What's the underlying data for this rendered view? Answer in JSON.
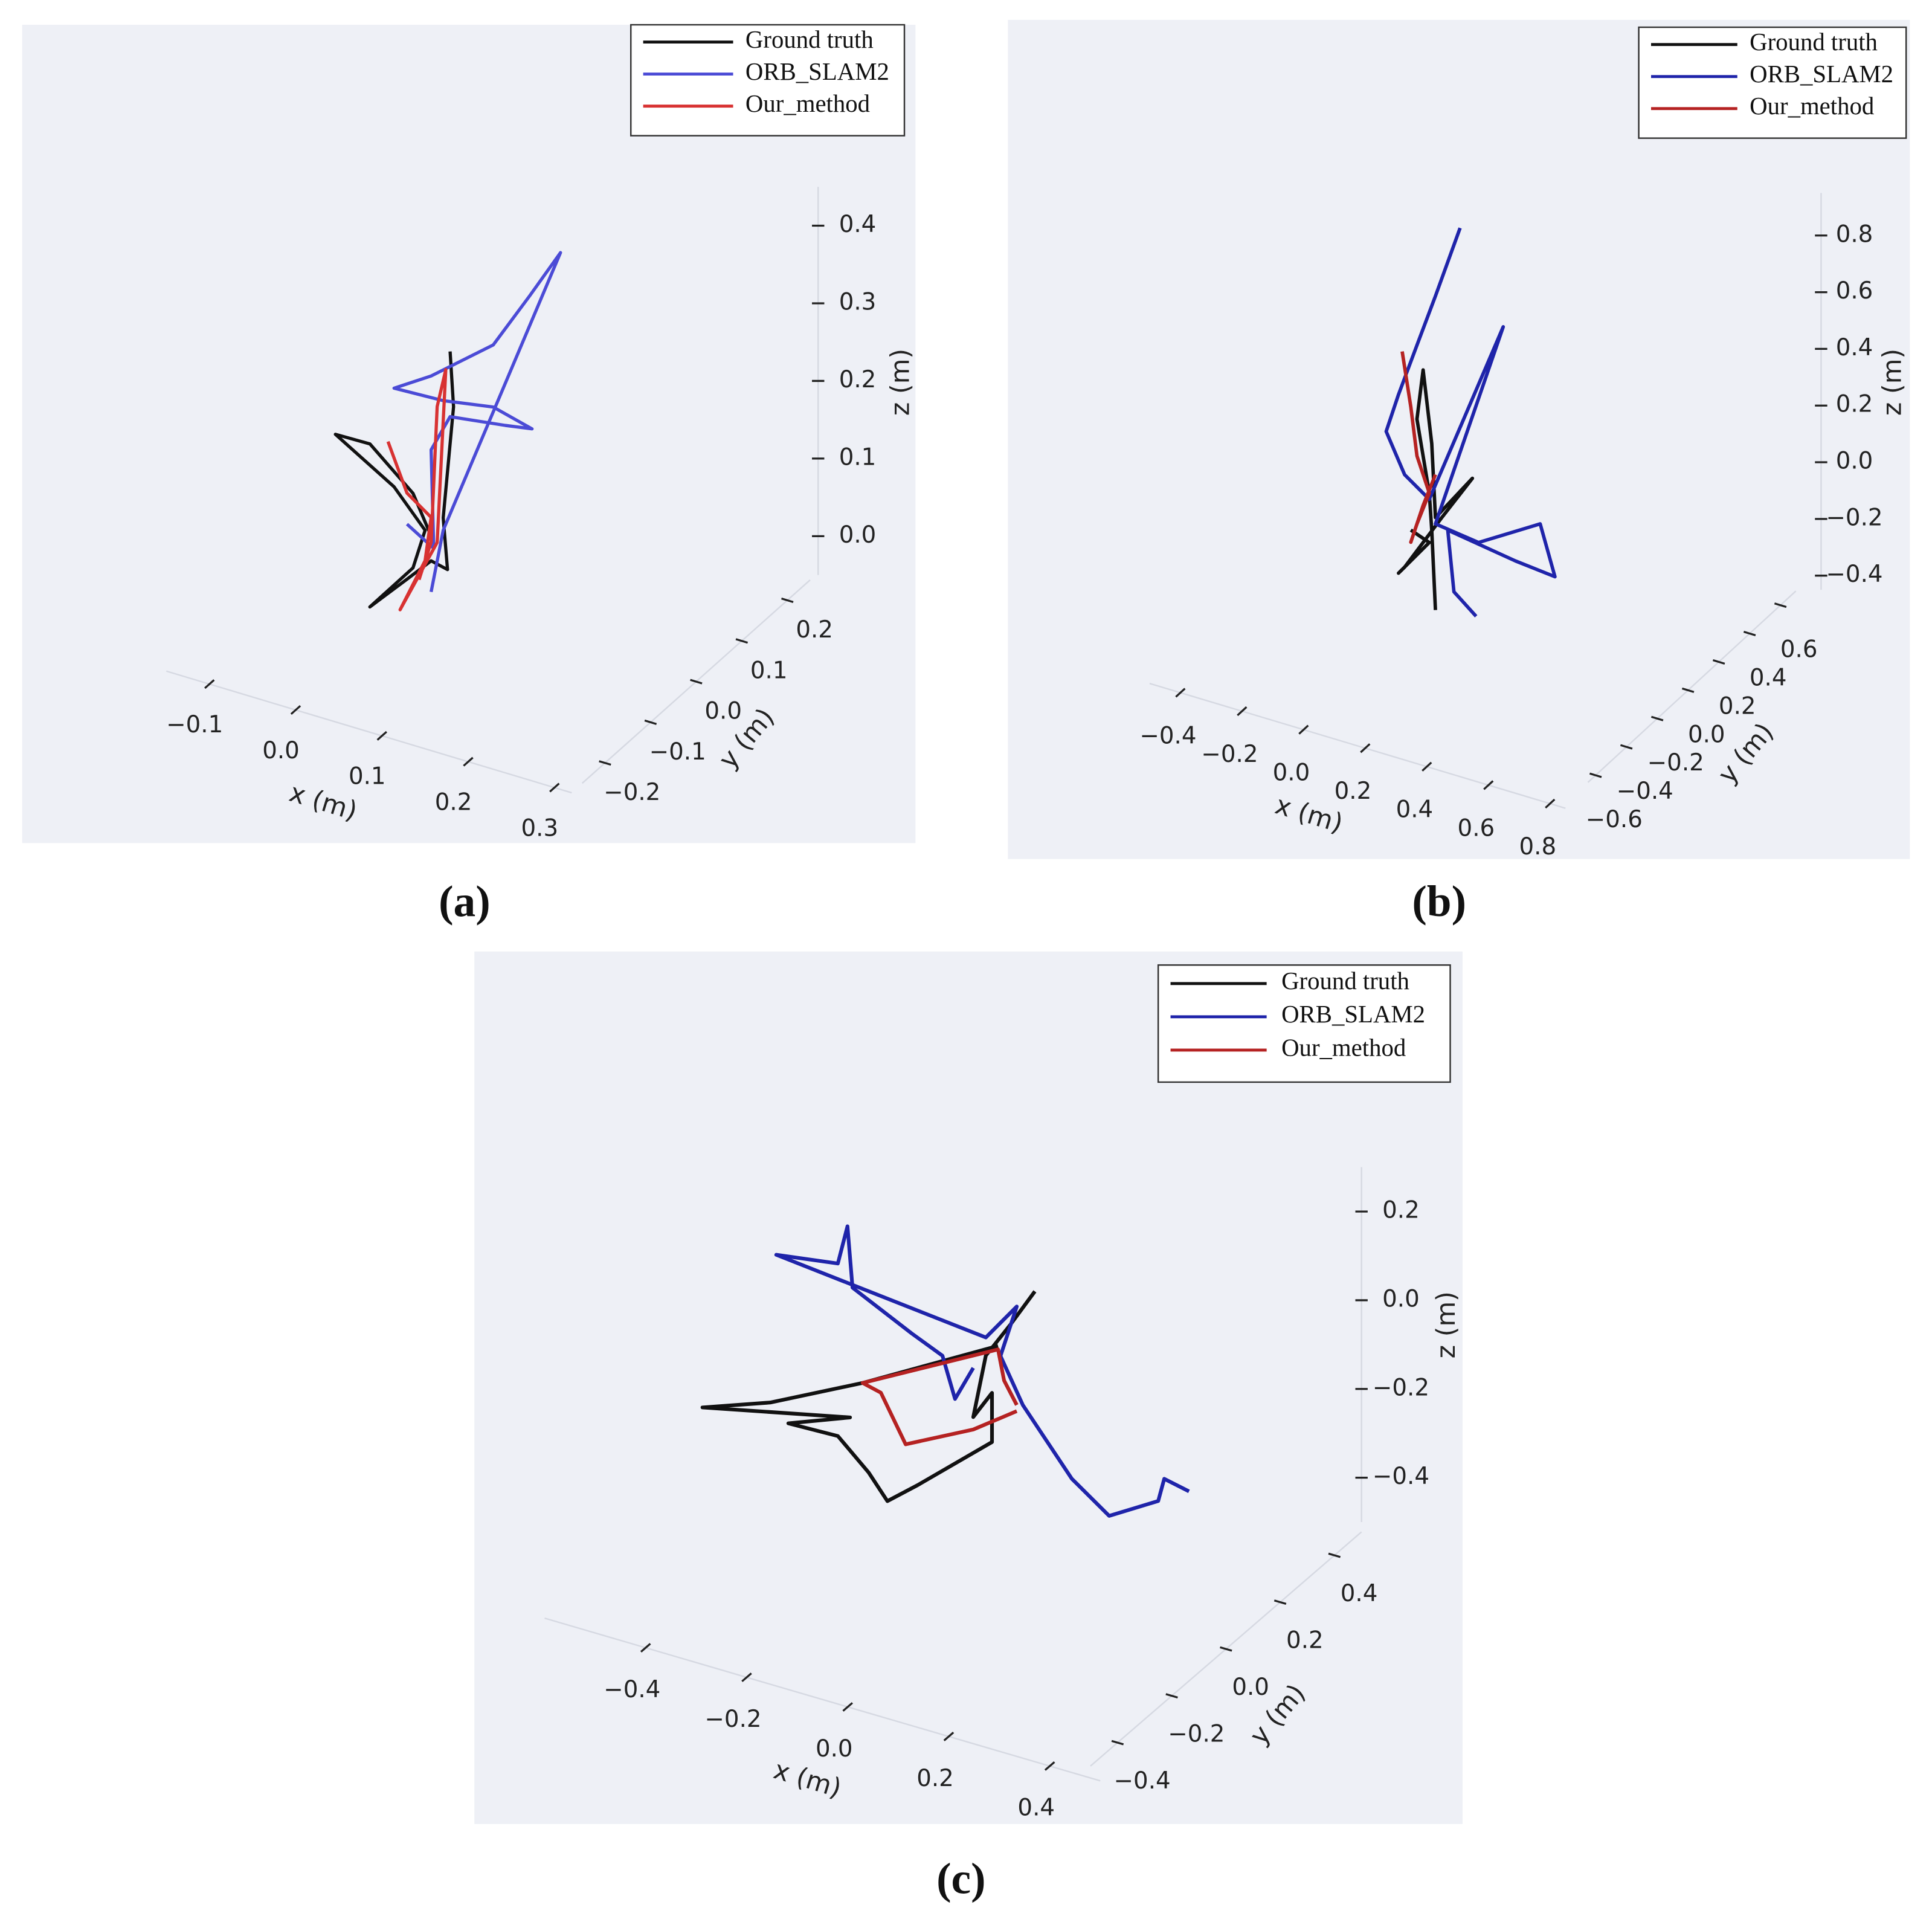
{
  "chart_data": [
    {
      "type": "line3d",
      "label": "(a)",
      "xlabel": "x (m)",
      "ylabel": "y (m)",
      "zlabel": "z (m)",
      "xlim": [
        -0.15,
        0.32
      ],
      "ylim": [
        -0.25,
        0.25
      ],
      "zlim": [
        -0.05,
        0.45
      ],
      "xticks": [
        {
          "value": -0.1,
          "label": "−0.1"
        },
        {
          "value": 0,
          "label": "0.0"
        },
        0.1,
        0.2,
        0.3
      ],
      "yticks": [
        {
          "value": -0.2,
          "label": "−0.2"
        },
        {
          "value": -0.1,
          "label": "−0.1"
        },
        {
          "value": 0,
          "label": "0.0"
        },
        0.1,
        0.2
      ],
      "zticks": [
        {
          "value": 0,
          "label": "0.0"
        },
        0.1,
        0.2,
        0.3,
        0.4
      ],
      "series": [
        {
          "name": "Ground truth",
          "color": "#111111",
          "x": [
            0.039,
            0.043,
            0.031,
            0.036,
            0.017,
            -0.011,
            -0.054,
            -0.004,
            0.01,
            -0.026,
            -0.094,
            -0.054,
            -0.004,
            0.02
          ],
          "z": [
            0.27,
            0.2,
            0.053,
            -0.012,
            -0.007,
            -0.04,
            -0.09,
            -0.023,
            0.03,
            0.074,
            0.119,
            0.12,
            0.073,
            0.018
          ]
        },
        {
          "name": "ORB_SLAM2",
          "color": "#4b4bd6",
          "x": [
            0.017,
            0.031,
            0.167,
            0.131,
            0.089,
            0.017,
            -0.026,
            0.031,
            0.089,
            0.134,
            0.103,
            0.039,
            0.017,
            0.02,
            -0.011
          ],
          "z": [
            -0.047,
            0.037,
            0.44,
            0.372,
            0.295,
            0.231,
            0.201,
            0.204,
            0.215,
            0.202,
            0.196,
            0.186,
            0.136,
            0.01,
            0.031
          ]
        },
        {
          "name": "Our_method",
          "color": "#d83232",
          "x": [
            -0.033,
            -0.011,
            0.017,
            0.01,
            -0.019,
            0.024,
            0.034,
            0.024,
            0.017,
            0.003
          ],
          "z": [
            0.13,
            0.071,
            0.049,
            -0.009,
            -0.082,
            0.019,
            0.245,
            0.194,
            0.017,
            -0.036
          ]
        }
      ]
    },
    {
      "type": "line3d",
      "label": "(b)",
      "xlabel": "x (m)",
      "ylabel": "y (m)",
      "zlabel": "z (m)",
      "xlim": [
        -0.5,
        0.85
      ],
      "ylim": [
        -0.65,
        0.7
      ],
      "zlim": [
        -0.45,
        0.95
      ],
      "xticks": [
        {
          "value": -0.4,
          "label": "−0.4"
        },
        {
          "value": -0.2,
          "label": "−0.2"
        },
        {
          "value": 0,
          "label": "0.0"
        },
        0.2,
        0.4,
        0.6,
        0.8
      ],
      "yticks": [
        {
          "value": -0.6,
          "label": "−0.6"
        },
        {
          "value": -0.4,
          "label": "−0.4"
        },
        {
          "value": -0.2,
          "label": "−0.2"
        },
        {
          "value": 0,
          "label": "0.0"
        },
        0.2,
        0.4,
        0.6
      ],
      "zticks": [
        {
          "value": -0.4,
          "label": "−0.4"
        },
        {
          "value": -0.2,
          "label": "−0.2"
        },
        {
          "value": 0,
          "label": "0.0"
        },
        0.2,
        0.4,
        0.6,
        0.8
      ],
      "series": [
        {
          "name": "Ground truth",
          "color": "#111111",
          "x": [
            0.064,
            0.052,
            0.044,
            0.004,
            0.024,
            0.052,
            0.064,
            0.184,
            0.084,
            -0.036,
            -0.056,
            0.044,
            -0.016
          ],
          "z": [
            -0.444,
            -0.166,
            -0.038,
            0.21,
            0.39,
            0.139,
            -0.118,
            0.06,
            -0.112,
            -0.325,
            -0.353,
            -0.212,
            -0.188
          ]
        },
        {
          "name": "ORB_SLAM2",
          "color": "#1f24aa",
          "x": [
            0.144,
            0.064,
            0.004,
            -0.056,
            -0.096,
            -0.036,
            0.044,
            0.284,
            0.064,
            0.204,
            0.404,
            0.452,
            0.324,
            0.104,
            0.124,
            0.196
          ],
          "z": [
            0.93,
            0.664,
            0.471,
            0.277,
            0.134,
            0.001,
            -0.06,
            0.627,
            -0.14,
            -0.16,
            -0.029,
            -0.2,
            -0.186,
            -0.149,
            -0.36,
            -0.423
          ]
        },
        {
          "name": "Our_method",
          "color": "#b52222",
          "x": [
            -0.044,
            -0.016,
            0.004,
            0.044,
            0.004,
            -0.016,
            0.024,
            0.064
          ],
          "z": [
            0.433,
            0.247,
            0.08,
            -0.038,
            -0.16,
            -0.231,
            -0.088,
            0.034
          ]
        }
      ]
    },
    {
      "type": "line3d",
      "label": "(c)",
      "xlabel": "x (m)",
      "ylabel": "y (m)",
      "zlabel": "z (m)",
      "xlim": [
        -0.6,
        0.5
      ],
      "ylim": [
        -0.5,
        0.5
      ],
      "zlim": [
        -0.5,
        0.3
      ],
      "xticks": [
        {
          "value": -0.4,
          "label": "−0.4"
        },
        {
          "value": -0.2,
          "label": "−0.2"
        },
        {
          "value": 0,
          "label": "0.0"
        },
        0.2,
        0.4
      ],
      "yticks": [
        {
          "value": -0.4,
          "label": "−0.4"
        },
        {
          "value": -0.2,
          "label": "−0.2"
        },
        {
          "value": 0,
          "label": "0.0"
        },
        0.2,
        0.4
      ],
      "zticks": [
        {
          "value": -0.4,
          "label": "−0.4"
        },
        {
          "value": -0.2,
          "label": "−0.2"
        },
        {
          "value": 0,
          "label": "0.0"
        },
        0.2
      ],
      "series": [
        {
          "name": "Ground truth",
          "color": "#111111",
          "x": [
            0.112,
            0.063,
            0.015,
            -0.01,
            0.027,
            0.027,
            -0.12,
            -0.18,
            -0.217,
            -0.278,
            -0.376,
            -0.254,
            -0.546,
            -0.412,
            -0.229,
            0.039
          ],
          "z": [
            0.16,
            0.068,
            -0.017,
            -0.164,
            -0.097,
            -0.208,
            -0.354,
            -0.41,
            -0.358,
            -0.296,
            -0.3,
            -0.246,
            -0.321,
            -0.265,
            -0.16,
            0.013
          ]
        },
        {
          "name": "ORB_SLAM2",
          "color": "#1f24aa",
          "x": [
            -0.01,
            -0.046,
            -0.071,
            -0.132,
            -0.249,
            -0.259,
            -0.278,
            -0.4,
            0.015,
            0.076,
            0.044,
            0.088,
            0.185,
            0.259,
            0.356,
            0.368,
            0.417
          ],
          "z": [
            -0.053,
            -0.135,
            -0.046,
            -0.016,
            0.048,
            0.183,
            0.093,
            0.072,
            0.024,
            0.114,
            -0.008,
            -0.104,
            -0.238,
            -0.297,
            -0.231,
            -0.177,
            -0.189
          ]
        },
        {
          "name": "Our_method",
          "color": "#b52222",
          "x": [
            0.076,
            0.051,
            0.039,
            -0.229,
            -0.193,
            -0.144,
            -0.01,
            0.076
          ],
          "z": [
            -0.108,
            -0.061,
            0.005,
            -0.16,
            -0.17,
            -0.27,
            -0.192,
            -0.122
          ]
        }
      ]
    }
  ]
}
